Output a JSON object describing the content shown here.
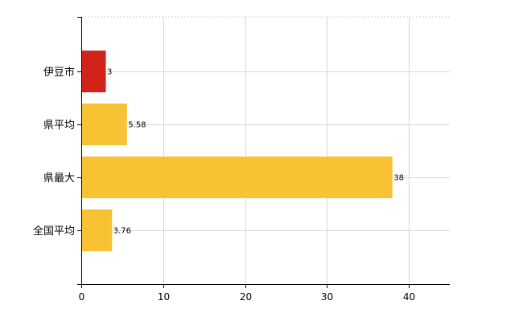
{
  "chart_data": {
    "type": "bar",
    "orientation": "horizontal",
    "title": "",
    "xlabel": "",
    "ylabel": "",
    "categories": [
      "伊豆市",
      "県平均",
      "県最大",
      "全国平均"
    ],
    "values": [
      3,
      5.58,
      38,
      3.76
    ],
    "value_labels": [
      "3",
      "5.58",
      "38",
      "3.76"
    ],
    "bar_colors": [
      "#d0231a",
      "#f7c334",
      "#f7c334",
      "#f7c334"
    ],
    "xlim": [
      0,
      45
    ],
    "xticks": [
      0,
      10,
      20,
      30,
      40
    ],
    "grid": true,
    "legend": "none"
  }
}
